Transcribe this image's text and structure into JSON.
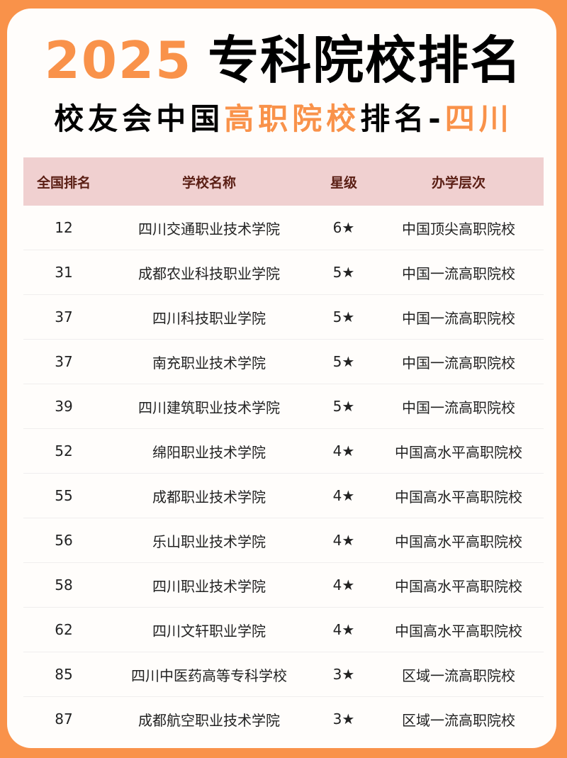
{
  "title": {
    "year": "2025",
    "text": "专科院校排名"
  },
  "subtitle": {
    "part1": "校友会中国",
    "part2": "高职院校",
    "part3": "排名-",
    "part4": "四川"
  },
  "colors": {
    "accent": "#f9924a",
    "header_bg": "#f0d0d0",
    "header_text": "#5a1e14"
  },
  "table": {
    "headers": [
      "全国排名",
      "学校名称",
      "星级",
      "办学层次"
    ],
    "rows": [
      [
        "12",
        "四川交通职业技术学院",
        "6★",
        "中国顶尖高职院校"
      ],
      [
        "31",
        "成都农业科技职业学院",
        "5★",
        "中国一流高职院校"
      ],
      [
        "37",
        "四川科技职业学院",
        "5★",
        "中国一流高职院校"
      ],
      [
        "37",
        "南充职业技术学院",
        "5★",
        "中国一流高职院校"
      ],
      [
        "39",
        "四川建筑职业技术学院",
        "5★",
        "中国一流高职院校"
      ],
      [
        "52",
        "绵阳职业技术学院",
        "4★",
        "中国高水平高职院校"
      ],
      [
        "55",
        "成都职业技术学院",
        "4★",
        "中国高水平高职院校"
      ],
      [
        "56",
        "乐山职业技术学院",
        "4★",
        "中国高水平高职院校"
      ],
      [
        "58",
        "四川职业技术学院",
        "4★",
        "中国高水平高职院校"
      ],
      [
        "62",
        "四川文轩职业学院",
        "4★",
        "中国高水平高职院校"
      ],
      [
        "85",
        "四川中医药高等专科学校",
        "3★",
        "区域一流高职院校"
      ],
      [
        "87",
        "成都航空职业技术学院",
        "3★",
        "区域一流高职院校"
      ]
    ]
  }
}
